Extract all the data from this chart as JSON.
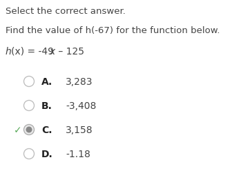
{
  "title": "Select the correct answer.",
  "question": "Find the value of h(-67) for the function below.",
  "func_parts": [
    {
      "text": "h",
      "style": "italic"
    },
    {
      "text": "(x) = -49",
      "style": "normal"
    },
    {
      "text": "x",
      "style": "italic"
    },
    {
      "text": " – 125",
      "style": "normal"
    }
  ],
  "options": [
    {
      "letter": "A.",
      "value": "3,283"
    },
    {
      "letter": "B.",
      "value": "-3,408"
    },
    {
      "letter": "C.",
      "value": "3,158"
    },
    {
      "letter": "D.",
      "value": "-1.18"
    }
  ],
  "correct_index": 2,
  "bg_color": "#ffffff",
  "text_color": "#444444",
  "radio_edge_color": "#c0c0c0",
  "radio_selected_outer_color": "#b0b0b0",
  "radio_selected_inner_color": "#888888",
  "check_color": "#5aaa5a",
  "title_fontsize": 9.5,
  "question_fontsize": 9.5,
  "function_fontsize": 10,
  "option_fontsize": 10,
  "option_letter_fontsize": 10
}
